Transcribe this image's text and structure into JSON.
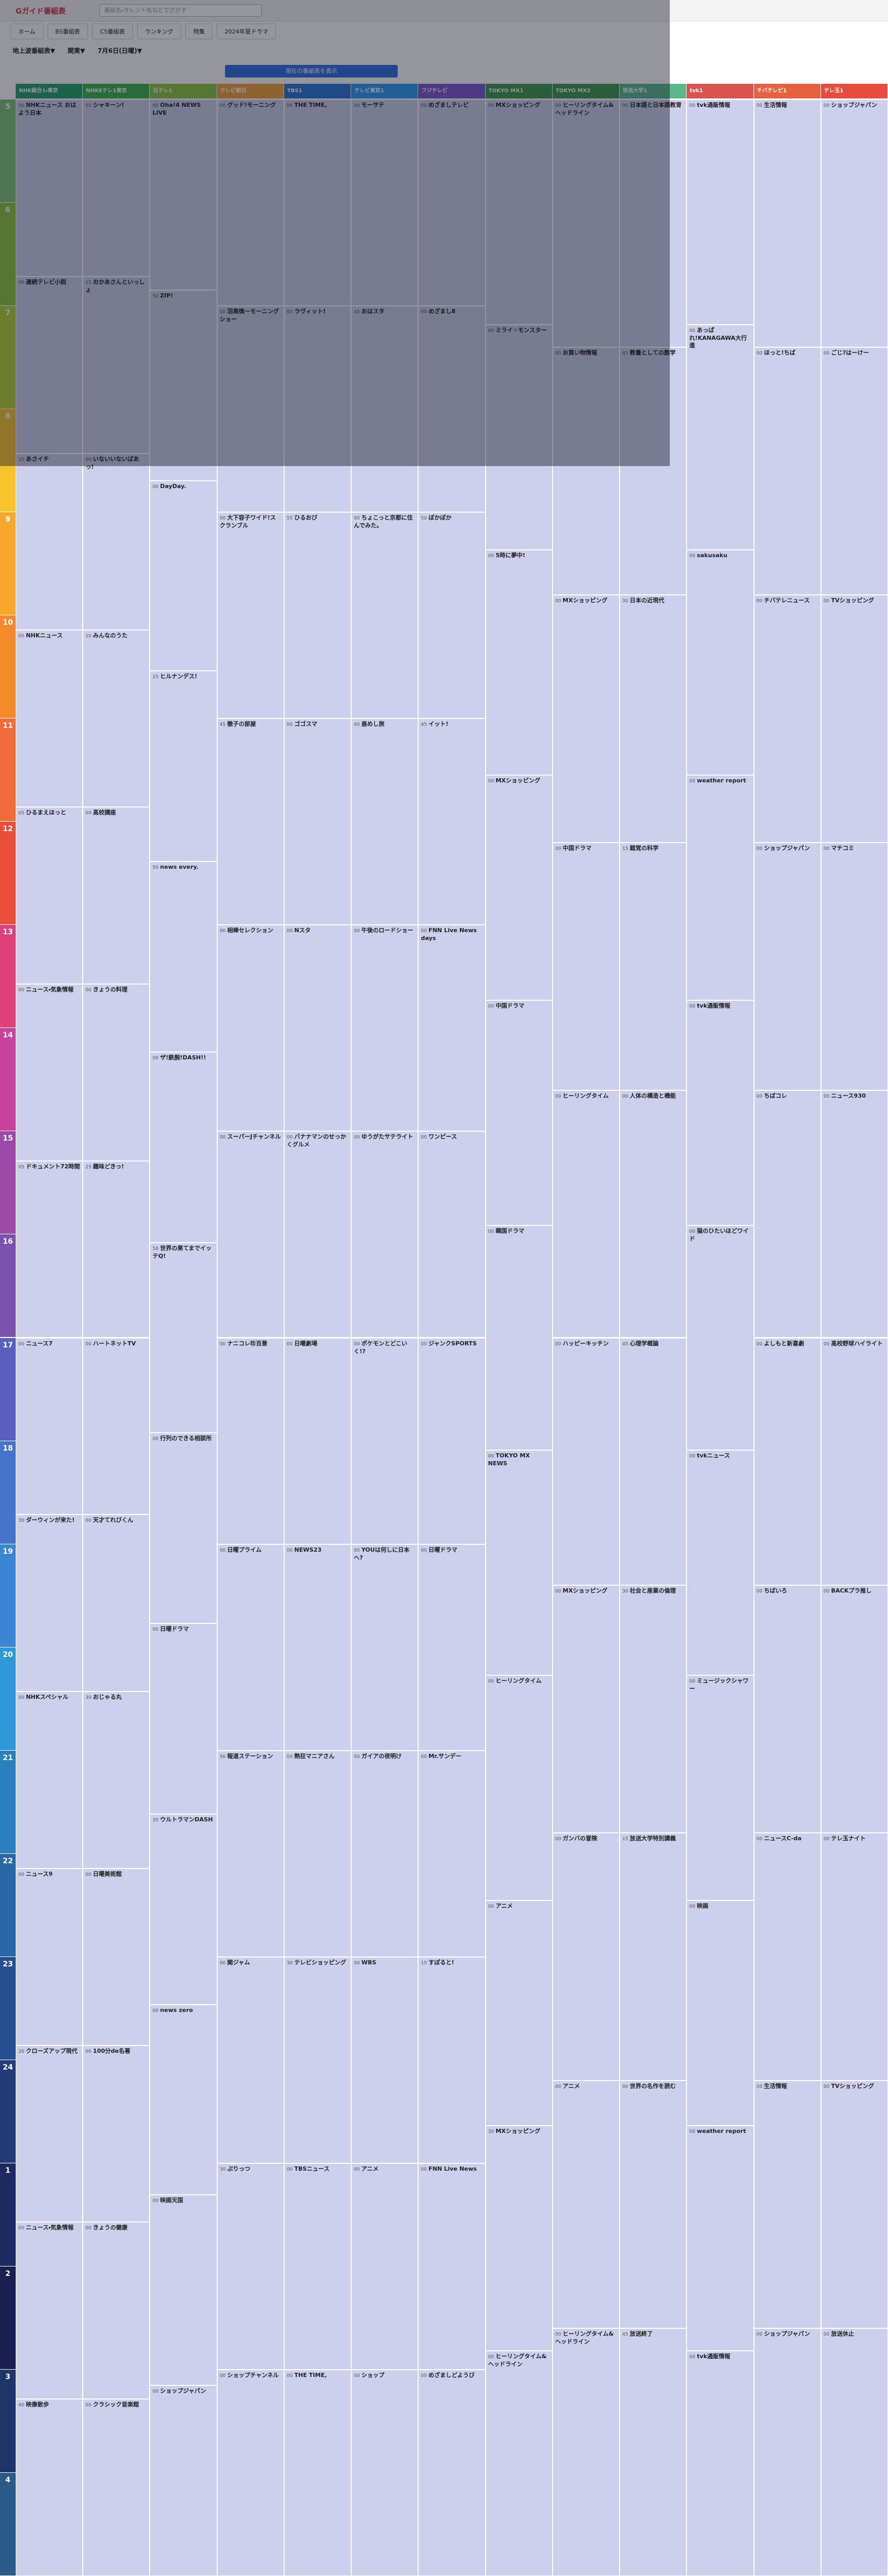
{
  "header": {
    "logo": "Gガイド番組表",
    "search_placeholder": "番組名・タレント名などでさがす",
    "nav": [
      "ホーム",
      "BS番組表",
      "CS番組表",
      "ランキング",
      "特集",
      "2024年夏ドラマ"
    ]
  },
  "filters": {
    "area_type": "地上波番組表▼",
    "region": "関東▼",
    "date": "7月6日(日曜)▼"
  },
  "now_button": "現在の番組表を表示",
  "hours": [
    "5",
    "6",
    "7",
    "8",
    "9",
    "10",
    "11",
    "12",
    "13",
    "14",
    "15",
    "16",
    "17",
    "18",
    "19",
    "20",
    "21",
    "22",
    "23",
    "24",
    "1",
    "2",
    "3",
    "4"
  ],
  "channels": [
    {
      "name": "NHK総合1・東京",
      "color": "#22a06b",
      "programs": [
        {
          "min": "00",
          "title": "NHKニュース おはよう日本"
        },
        {
          "min": "00",
          "title": "連続テレビ小説"
        },
        {
          "min": "15",
          "title": "あさイチ"
        },
        {
          "min": "00",
          "title": "NHKニュース"
        },
        {
          "min": "05",
          "title": "ひるまえほっと"
        },
        {
          "min": "00",
          "title": "ニュース・気象情報"
        },
        {
          "min": "05",
          "title": "ドキュメント72時間"
        },
        {
          "min": "00",
          "title": "ニュース7"
        },
        {
          "min": "30",
          "title": "ダーウィンが来た!"
        },
        {
          "min": "00",
          "title": "NHKスペシャル"
        },
        {
          "min": "00",
          "title": "ニュース9"
        },
        {
          "min": "20",
          "title": "クローズアップ現代"
        },
        {
          "min": "00",
          "title": "ニュース・気象情報"
        },
        {
          "min": "40",
          "title": "映像散歩"
        }
      ]
    },
    {
      "name": "NHKEテレ1東京",
      "color": "#3ab54a",
      "programs": [
        {
          "min": "00",
          "title": "シャキーン!"
        },
        {
          "min": "15",
          "title": "おかあさんといっしょ"
        },
        {
          "min": "00",
          "title": "いないいないばあっ!"
        },
        {
          "min": "10",
          "title": "みんなのうた"
        },
        {
          "min": "00",
          "title": "高校講座"
        },
        {
          "min": "00",
          "title": "きょうの料理"
        },
        {
          "min": "25",
          "title": "趣味どきっ!"
        },
        {
          "min": "00",
          "title": "ハートネットTV"
        },
        {
          "min": "00",
          "title": "天才てれびくん"
        },
        {
          "min": "30",
          "title": "おじゃる丸"
        },
        {
          "min": "00",
          "title": "日曜美術館"
        },
        {
          "min": "00",
          "title": "100分de名著"
        },
        {
          "min": "00",
          "title": "きょうの健康"
        },
        {
          "min": "00",
          "title": "クラシック音楽館"
        }
      ]
    },
    {
      "name": "日テレ1",
      "color": "#8cc63f",
      "programs": [
        {
          "min": "00",
          "title": "Oha!4 NEWS LIVE"
        },
        {
          "min": "50",
          "title": "ZIP!"
        },
        {
          "min": "00",
          "title": "DayDay."
        },
        {
          "min": "25",
          "title": "ヒルナンデス!"
        },
        {
          "min": "50",
          "title": "news every."
        },
        {
          "min": "00",
          "title": "ザ!鉄腕!DASH!!"
        },
        {
          "min": "58",
          "title": "世界の果てまでイッテQ!"
        },
        {
          "min": "00",
          "title": "行列のできる相談所"
        },
        {
          "min": "00",
          "title": "日曜ドラマ"
        },
        {
          "min": "30",
          "title": "ウルトラマンDASH"
        },
        {
          "min": "00",
          "title": "news zero"
        },
        {
          "min": "00",
          "title": "映画天国"
        },
        {
          "min": "00",
          "title": "ショップジャパン"
        }
      ]
    },
    {
      "name": "テレビ朝日",
      "color": "#f2a33a",
      "programs": [
        {
          "min": "00",
          "title": "グッド!モーニング"
        },
        {
          "min": "00",
          "title": "羽鳥慎一モーニングショー"
        },
        {
          "min": "00",
          "title": "大下容子ワイド!スクランブル"
        },
        {
          "min": "45",
          "title": "徹子の部屋"
        },
        {
          "min": "00",
          "title": "相棒セレクション"
        },
        {
          "min": "00",
          "title": "スーパーJチャンネル"
        },
        {
          "min": "00",
          "title": "ナニコレ珍百景"
        },
        {
          "min": "00",
          "title": "日曜プライム"
        },
        {
          "min": "56",
          "title": "報道ステーション"
        },
        {
          "min": "00",
          "title": "関ジャム"
        },
        {
          "min": "30",
          "title": "ぷりっつ"
        },
        {
          "min": "00",
          "title": "ショップチャンネル"
        }
      ]
    },
    {
      "name": "TBS1",
      "color": "#2a77d4",
      "programs": [
        {
          "min": "00",
          "title": "THE TIME,"
        },
        {
          "min": "00",
          "title": "ラヴィット!"
        },
        {
          "min": "55",
          "title": "ひるおび"
        },
        {
          "min": "00",
          "title": "ゴゴスマ"
        },
        {
          "min": "00",
          "title": "Nスタ"
        },
        {
          "min": "00",
          "title": "バナナマンのせっかくグルメ"
        },
        {
          "min": "00",
          "title": "日曜劇場"
        },
        {
          "min": "00",
          "title": "NEWS23"
        },
        {
          "min": "00",
          "title": "熱狂マニアさん"
        },
        {
          "min": "30",
          "title": "テレビショッピング"
        },
        {
          "min": "00",
          "title": "TBSニュース"
        },
        {
          "min": "00",
          "title": "THE TIME,"
        }
      ]
    },
    {
      "name": "テレビ東京1",
      "color": "#2c9cf0",
      "programs": [
        {
          "min": "00",
          "title": "モーサテ"
        },
        {
          "min": "45",
          "title": "おはスタ"
        },
        {
          "min": "00",
          "title": "ちょこっと京都に住んでみた。"
        },
        {
          "min": "40",
          "title": "昼めし旅"
        },
        {
          "min": "00",
          "title": "午後のロードショー"
        },
        {
          "min": "00",
          "title": "ゆうがたサテライト"
        },
        {
          "min": "00",
          "title": "ポケモンとどこいく!?"
        },
        {
          "min": "00",
          "title": "YOUは何しに日本へ?"
        },
        {
          "min": "00",
          "title": "ガイアの夜明け"
        },
        {
          "min": "00",
          "title": "WBS"
        },
        {
          "min": "00",
          "title": "アニメ"
        },
        {
          "min": "00",
          "title": "ショップ"
        }
      ]
    },
    {
      "name": "フジテレビ",
      "color": "#7b5ad1",
      "programs": [
        {
          "min": "00",
          "title": "めざましテレビ"
        },
        {
          "min": "00",
          "title": "めざまし8"
        },
        {
          "min": "50",
          "title": "ぽかぽか"
        },
        {
          "min": "45",
          "title": "イット!"
        },
        {
          "min": "00",
          "title": "FNN Live News days"
        },
        {
          "min": "00",
          "title": "ワンピース"
        },
        {
          "min": "00",
          "title": "ジャンクSPORTS"
        },
        {
          "min": "00",
          "title": "日曜ドラマ"
        },
        {
          "min": "00",
          "title": "Mr.サンデー"
        },
        {
          "min": "15",
          "title": "すぽると!"
        },
        {
          "min": "00",
          "title": "FNN Live News"
        },
        {
          "min": "00",
          "title": "めざましどようび"
        }
      ]
    },
    {
      "name": "TOKYO MX1",
      "color": "#3e9a4a",
      "programs": [
        {
          "min": "00",
          "title": "MXショッピング"
        },
        {
          "min": "00",
          "title": "ミライ☆モンスター"
        },
        {
          "min": "00",
          "title": "5時に夢中!"
        },
        {
          "min": "00",
          "title": "MXショッピング"
        },
        {
          "min": "00",
          "title": "中国ドラマ"
        },
        {
          "min": "00",
          "title": "韓国ドラマ"
        },
        {
          "min": "00",
          "title": "TOKYO MX NEWS"
        },
        {
          "min": "00",
          "title": "ヒーリングタイム"
        },
        {
          "min": "00",
          "title": "アニメ"
        },
        {
          "min": "30",
          "title": "MXショッピング"
        },
        {
          "min": "00",
          "title": "ヒーリングタイム&ヘッドライン"
        }
      ]
    },
    {
      "name": "TOKYO MX2",
      "color": "#3e9a4a",
      "programs": [
        {
          "min": "00",
          "title": "ヒーリングタイム&ヘッドライン"
        },
        {
          "min": "00",
          "title": "お買い物情報"
        },
        {
          "min": "00",
          "title": "MXショッピング"
        },
        {
          "min": "00",
          "title": "中国ドラマ"
        },
        {
          "min": "00",
          "title": "ヒーリングタイム"
        },
        {
          "min": "00",
          "title": "ハッピーキッチン"
        },
        {
          "min": "00",
          "title": "MXショッピング"
        },
        {
          "min": "00",
          "title": "ガンバの冒険"
        },
        {
          "min": "00",
          "title": "アニメ"
        },
        {
          "min": "00",
          "title": "ヒーリングタイム&ヘッドライン"
        }
      ]
    },
    {
      "name": "放送大学1",
      "color": "#5ab88a",
      "programs": [
        {
          "min": "00",
          "title": "日本語と日本語教育"
        },
        {
          "min": "45",
          "title": "教養としての数学"
        },
        {
          "min": "30",
          "title": "日本の近現代"
        },
        {
          "min": "15",
          "title": "錯覚の科学"
        },
        {
          "min": "00",
          "title": "人体の構造と機能"
        },
        {
          "min": "45",
          "title": "心理学概論"
        },
        {
          "min": "30",
          "title": "社会と産業の倫理"
        },
        {
          "min": "15",
          "title": "放送大学特別講義"
        },
        {
          "min": "00",
          "title": "世界の名作を読む"
        },
        {
          "min": "45",
          "title": "放送終了"
        }
      ]
    },
    {
      "name": "tvk1",
      "color": "#d9534f",
      "programs": [
        {
          "min": "00",
          "title": "tvk通販情報"
        },
        {
          "min": "00",
          "title": "あっぱれ!KANAGAWA大行進"
        },
        {
          "min": "00",
          "title": "sakusaku"
        },
        {
          "min": "00",
          "title": "weather report"
        },
        {
          "min": "00",
          "title": "tvk通販情報"
        },
        {
          "min": "00",
          "title": "猫のひたいほどワイド"
        },
        {
          "min": "00",
          "title": "tvkニュース"
        },
        {
          "min": "00",
          "title": "ミュージックシャワー"
        },
        {
          "min": "00",
          "title": "映画"
        },
        {
          "min": "00",
          "title": "weather report"
        },
        {
          "min": "00",
          "title": "tvk通販情報"
        }
      ]
    },
    {
      "name": "チバテレビ1",
      "color": "#e8613f",
      "programs": [
        {
          "min": "00",
          "title": "生活情報"
        },
        {
          "min": "00",
          "title": "ほっと!ちば"
        },
        {
          "min": "00",
          "title": "チバテレニュース"
        },
        {
          "min": "00",
          "title": "ショップジャパン"
        },
        {
          "min": "00",
          "title": "ちばコレ"
        },
        {
          "min": "00",
          "title": "よしもと新喜劇"
        },
        {
          "min": "00",
          "title": "ちばいろ"
        },
        {
          "min": "00",
          "title": "ニュースC-da"
        },
        {
          "min": "00",
          "title": "生活情報"
        },
        {
          "min": "00",
          "title": "ショップジャパン"
        }
      ]
    },
    {
      "name": "テレ玉1",
      "color": "#e84c3d",
      "programs": [
        {
          "min": "00",
          "title": "ショップジャパン"
        },
        {
          "min": "00",
          "title": "ごじ?はーけー"
        },
        {
          "min": "00",
          "title": "TVショッピング"
        },
        {
          "min": "00",
          "title": "マチコミ"
        },
        {
          "min": "00",
          "title": "ニュース930"
        },
        {
          "min": "00",
          "title": "高校野球ハイライト"
        },
        {
          "min": "00",
          "title": "BACKプラ推し"
        },
        {
          "min": "00",
          "title": "テレ玉ナイト"
        },
        {
          "min": "00",
          "title": "TVショッピング"
        },
        {
          "min": "00",
          "title": "放送休止"
        }
      ]
    }
  ]
}
